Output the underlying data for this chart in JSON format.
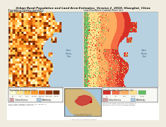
{
  "title": "Urban-Rural Population and Land Area Estimates, Version 2, 2010: Shanghai, China",
  "subtitle": "Low Elevation Coastal Zone",
  "map1_title": "Population Density (per km²)",
  "map2_title": "Low Elevation Coastal Zone (m)",
  "page_bg": "#f0ede0",
  "map_border": "#aaaaaa",
  "sea_color_rgb": [
    0.72,
    0.82,
    0.88
  ],
  "land_bg_rgb": [
    0.98,
    0.92,
    0.7
  ],
  "lecz_land_bg_rgb": [
    0.75,
    0.85,
    0.72
  ],
  "pop_density_colors": [
    "#ffffd4",
    "#fee391",
    "#fec44f",
    "#fe9929",
    "#d95f0e",
    "#993404",
    "#6b2d04"
  ],
  "pop_density_labels": [
    "<1",
    "1-5",
    "5-25",
    "25-100",
    "100-500",
    "500-1000",
    ">1000"
  ],
  "pop_density_probs": [
    0.08,
    0.15,
    0.2,
    0.22,
    0.18,
    0.1,
    0.07
  ],
  "lecz_colors": [
    "#d73027",
    "#f46d43",
    "#fdae61",
    "#fee08b",
    "#66bd63"
  ],
  "lecz_labels": [
    "0-2",
    "2-5",
    "5-10",
    "10-20",
    "20-30"
  ],
  "text_color": "#111111",
  "legend_bg": "#f8f8f4",
  "urban_extent_color": "#d4a0a0",
  "waterbody_color": "#aac8e0",
  "inset_land_color": "#d4b87a",
  "inset_sea_color": "#a8c8dc",
  "inset_highlight_color": "#cc3333",
  "east_china_sea_label": "East\nChina\nSea",
  "scale_bar_color": "#333333",
  "white": "#ffffff"
}
